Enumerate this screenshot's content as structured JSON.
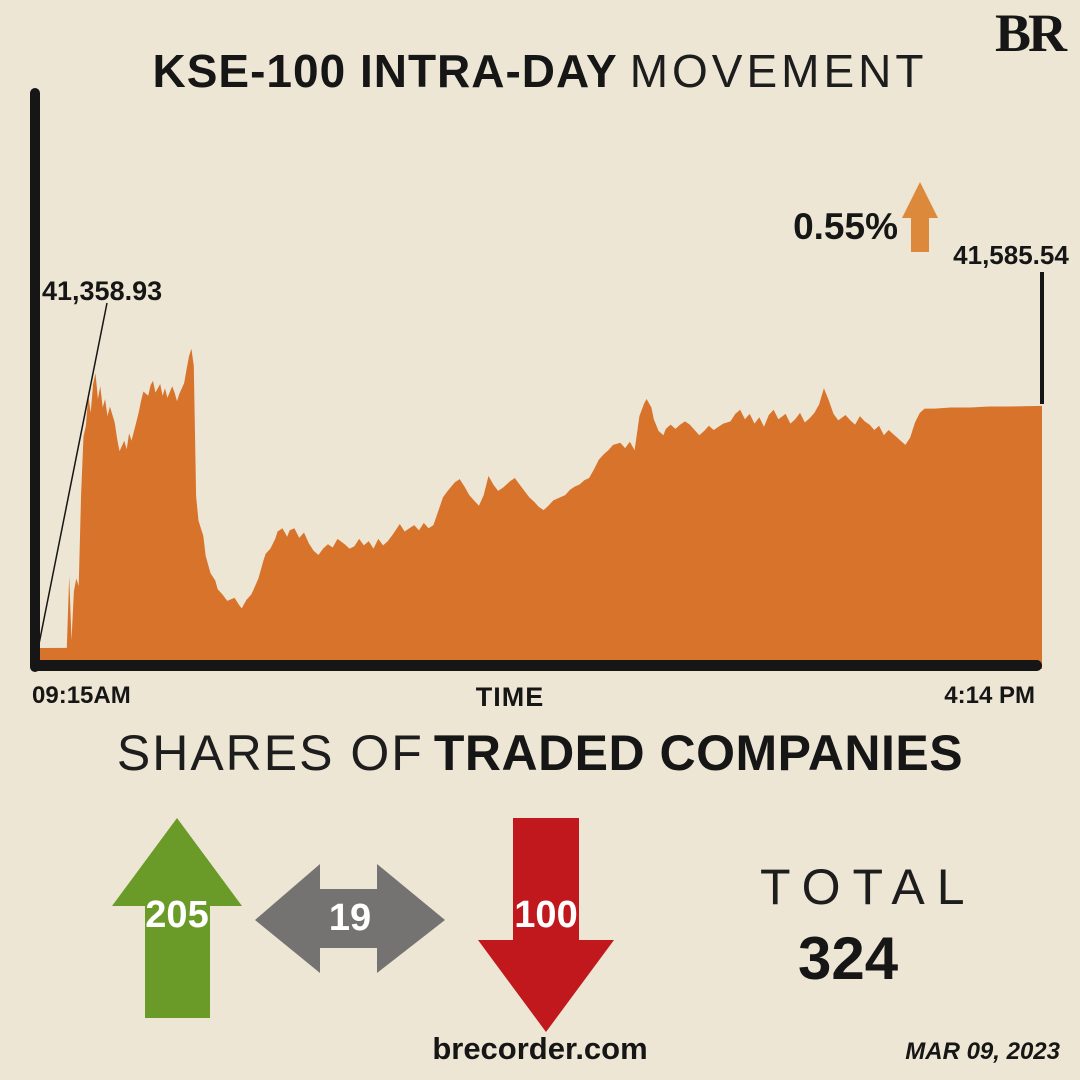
{
  "brand": {
    "logo": "BR",
    "site": "brecorder.com",
    "date": "MAR 09, 2023"
  },
  "title": {
    "bold": "KSE-100 INTRA-DAY",
    "light": "MOVEMENT"
  },
  "chart": {
    "open_label": "41,358.93",
    "close_label": "41,585.54",
    "change_label": "0.55%",
    "x_start_label": "09:15AM",
    "x_axis_label": "TIME",
    "x_end_label": "4:14 PM"
  },
  "chart_data": {
    "type": "area",
    "title": "KSE-100 intra-day movement",
    "xlabel": "TIME",
    "x_range_labels": [
      "09:15AM",
      "4:14 PM"
    ],
    "x_unit": "minutes since 09:15AM",
    "x_total_minutes": 419,
    "open": 41358.93,
    "close": 41585.54,
    "change_pct": 0.55,
    "ylim": [
      41332,
      41680
    ],
    "grid": false,
    "legend": "none",
    "series": [
      {
        "name": "KSE-100 Index",
        "points": [
          [
            0,
            41358.93
          ],
          [
            12,
            41359
          ],
          [
            13,
            41426
          ],
          [
            14,
            41366
          ],
          [
            15,
            41412
          ],
          [
            16,
            41424
          ],
          [
            17,
            41417
          ],
          [
            18,
            41503
          ],
          [
            19,
            41557
          ],
          [
            20,
            41567
          ],
          [
            21,
            41595
          ],
          [
            22,
            41579
          ],
          [
            23,
            41606
          ],
          [
            24,
            41616
          ],
          [
            25,
            41592
          ],
          [
            26,
            41604
          ],
          [
            27,
            41584
          ],
          [
            28,
            41592
          ],
          [
            29,
            41576
          ],
          [
            30,
            41585
          ],
          [
            32,
            41570
          ],
          [
            33,
            41555
          ],
          [
            34,
            41543
          ],
          [
            36,
            41553
          ],
          [
            37,
            41545
          ],
          [
            38,
            41560
          ],
          [
            39,
            41553
          ],
          [
            41,
            41570
          ],
          [
            42,
            41579
          ],
          [
            43,
            41590
          ],
          [
            44,
            41599
          ],
          [
            46,
            41595
          ],
          [
            47,
            41605
          ],
          [
            48,
            41609
          ],
          [
            49,
            41598
          ],
          [
            51,
            41606
          ],
          [
            52,
            41595
          ],
          [
            53,
            41602
          ],
          [
            54,
            41593
          ],
          [
            56,
            41604
          ],
          [
            57,
            41598
          ],
          [
            58,
            41590
          ],
          [
            59,
            41597
          ],
          [
            61,
            41607
          ],
          [
            62,
            41620
          ],
          [
            63,
            41632
          ],
          [
            64,
            41639
          ],
          [
            65,
            41623
          ],
          [
            66,
            41501
          ],
          [
            67,
            41478
          ],
          [
            69,
            41464
          ],
          [
            70,
            41445
          ],
          [
            72,
            41429
          ],
          [
            74,
            41422
          ],
          [
            75,
            41414
          ],
          [
            77,
            41409
          ],
          [
            79,
            41403
          ],
          [
            82,
            41406
          ],
          [
            84,
            41399
          ],
          [
            85,
            41396
          ],
          [
            87,
            41404
          ],
          [
            89,
            41409
          ],
          [
            90,
            41414
          ],
          [
            92,
            41424
          ],
          [
            94,
            41440
          ],
          [
            95,
            41447
          ],
          [
            97,
            41452
          ],
          [
            99,
            41461
          ],
          [
            100,
            41468
          ],
          [
            102,
            41471
          ],
          [
            104,
            41463
          ],
          [
            105,
            41469
          ],
          [
            107,
            41471
          ],
          [
            109,
            41462
          ],
          [
            111,
            41467
          ],
          [
            113,
            41457
          ],
          [
            115,
            41450
          ],
          [
            117,
            41446
          ],
          [
            119,
            41452
          ],
          [
            121,
            41456
          ],
          [
            123,
            41453
          ],
          [
            125,
            41461
          ],
          [
            128,
            41456
          ],
          [
            130,
            41452
          ],
          [
            132,
            41454
          ],
          [
            134,
            41461
          ],
          [
            136,
            41455
          ],
          [
            138,
            41459
          ],
          [
            140,
            41452
          ],
          [
            142,
            41461
          ],
          [
            144,
            41455
          ],
          [
            146,
            41459
          ],
          [
            148,
            41465
          ],
          [
            151,
            41475
          ],
          [
            153,
            41468
          ],
          [
            155,
            41471
          ],
          [
            157,
            41474
          ],
          [
            159,
            41469
          ],
          [
            161,
            41476
          ],
          [
            163,
            41471
          ],
          [
            165,
            41474
          ],
          [
            167,
            41487
          ],
          [
            169,
            41500
          ],
          [
            171,
            41506
          ],
          [
            174,
            41514
          ],
          [
            176,
            41517
          ],
          [
            178,
            41510
          ],
          [
            180,
            41502
          ],
          [
            182,
            41497
          ],
          [
            184,
            41492
          ],
          [
            186,
            41502
          ],
          [
            188,
            41520
          ],
          [
            190,
            41512
          ],
          [
            192,
            41506
          ],
          [
            194,
            41509
          ],
          [
            197,
            41515
          ],
          [
            199,
            41518
          ],
          [
            201,
            41512
          ],
          [
            203,
            41506
          ],
          [
            205,
            41500
          ],
          [
            207,
            41496
          ],
          [
            209,
            41491
          ],
          [
            211,
            41488
          ],
          [
            213,
            41492
          ],
          [
            215,
            41497
          ],
          [
            217,
            41499
          ],
          [
            220,
            41502
          ],
          [
            222,
            41507
          ],
          [
            224,
            41510
          ],
          [
            226,
            41512
          ],
          [
            228,
            41516
          ],
          [
            230,
            41518
          ],
          [
            232,
            41526
          ],
          [
            234,
            41535
          ],
          [
            236,
            41540
          ],
          [
            238,
            41544
          ],
          [
            240,
            41549
          ],
          [
            243,
            41551
          ],
          [
            245,
            41546
          ],
          [
            247,
            41552
          ],
          [
            249,
            41544
          ],
          [
            251,
            41576
          ],
          [
            253,
            41588
          ],
          [
            254,
            41592
          ],
          [
            256,
            41584
          ],
          [
            257,
            41573
          ],
          [
            259,
            41562
          ],
          [
            261,
            41558
          ],
          [
            262,
            41564
          ],
          [
            264,
            41568
          ],
          [
            266,
            41564
          ],
          [
            268,
            41568
          ],
          [
            270,
            41571
          ],
          [
            272,
            41568
          ],
          [
            274,
            41563
          ],
          [
            276,
            41558
          ],
          [
            278,
            41562
          ],
          [
            280,
            41567
          ],
          [
            282,
            41563
          ],
          [
            284,
            41566
          ],
          [
            286,
            41569
          ],
          [
            289,
            41571
          ],
          [
            291,
            41578
          ],
          [
            293,
            41582
          ],
          [
            295,
            41573
          ],
          [
            297,
            41578
          ],
          [
            299,
            41569
          ],
          [
            301,
            41575
          ],
          [
            303,
            41566
          ],
          [
            305,
            41577
          ],
          [
            307,
            41582
          ],
          [
            309,
            41573
          ],
          [
            312,
            41578
          ],
          [
            314,
            41569
          ],
          [
            316,
            41573
          ],
          [
            318,
            41579
          ],
          [
            320,
            41570
          ],
          [
            322,
            41574
          ],
          [
            324,
            41579
          ],
          [
            326,
            41587
          ],
          [
            328,
            41602
          ],
          [
            330,
            41591
          ],
          [
            332,
            41578
          ],
          [
            334,
            41572
          ],
          [
            337,
            41577
          ],
          [
            339,
            41572
          ],
          [
            341,
            41568
          ],
          [
            343,
            41576
          ],
          [
            345,
            41571
          ],
          [
            347,
            41568
          ],
          [
            349,
            41563
          ],
          [
            351,
            41567
          ],
          [
            353,
            41558
          ],
          [
            355,
            41563
          ],
          [
            358,
            41557
          ],
          [
            360,
            41553
          ],
          [
            362,
            41549
          ],
          [
            364,
            41556
          ],
          [
            366,
            41570
          ],
          [
            368,
            41579
          ],
          [
            370,
            41583
          ],
          [
            374,
            41583
          ],
          [
            381,
            41584
          ],
          [
            389,
            41584
          ],
          [
            397,
            41585
          ],
          [
            406,
            41585
          ],
          [
            419,
            41585.54
          ]
        ]
      }
    ]
  },
  "shares": {
    "heading_light": "SHARES OF",
    "heading_bold": "TRADED COMPANIES",
    "advancers": "205",
    "unchanged": "19",
    "decliners": "100",
    "total_label": "TOTAL",
    "total_value": "324"
  },
  "colors": {
    "background": "#ede6d4",
    "area": "#d8732c",
    "accent_arrow": "#dd893c",
    "ink": "#161616",
    "up": "#6a9a28",
    "neutral": "#757371",
    "down": "#c1181d"
  }
}
